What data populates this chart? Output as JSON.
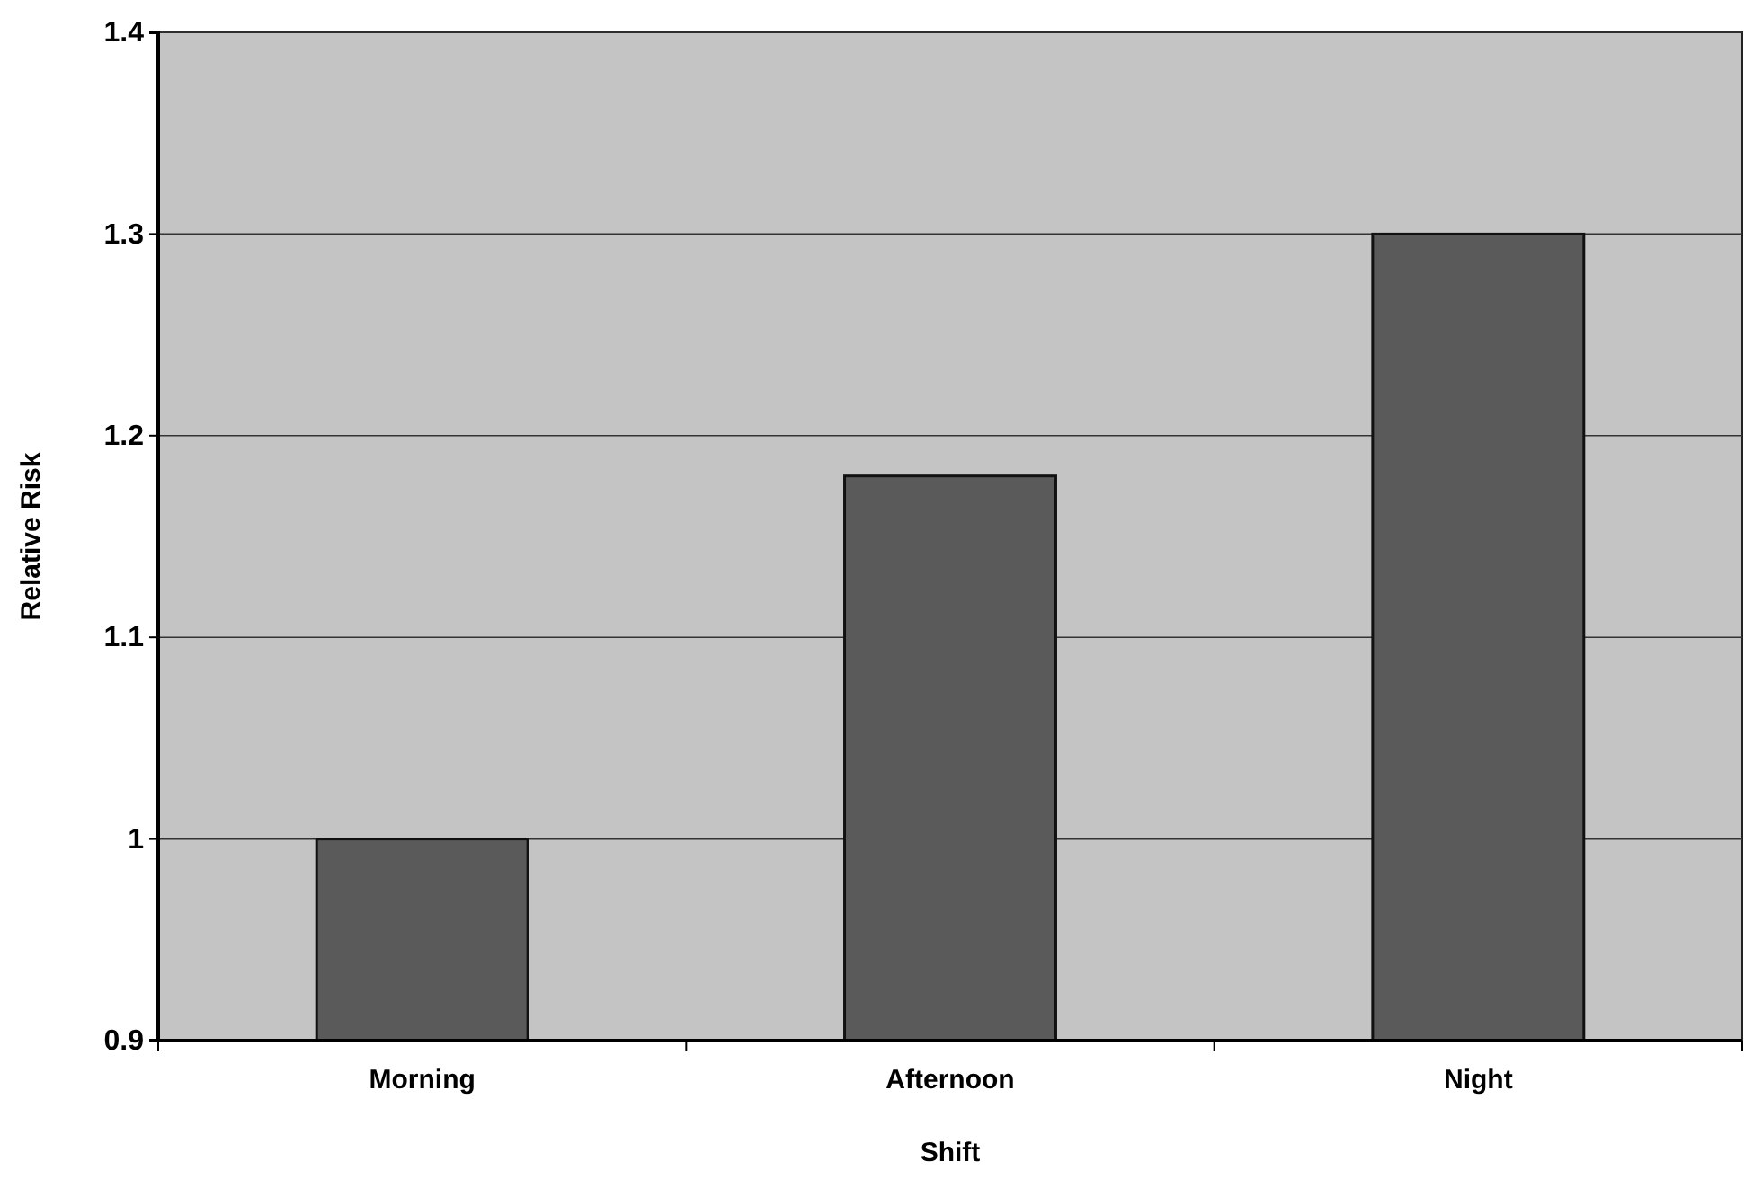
{
  "chart_data": {
    "type": "bar",
    "xlabel": "Shift",
    "ylabel": "Relative Risk",
    "categories": [
      "Morning",
      "Afternoon",
      "Night"
    ],
    "values": [
      1.0,
      1.18,
      1.3
    ],
    "color": "#5a5a5a",
    "ylim": [
      0.9,
      1.4
    ],
    "yticks": [
      {
        "value": 0.9,
        "label": "0.9"
      },
      1,
      1.1,
      1.2,
      1.3,
      1.4
    ],
    "grid": "y"
  }
}
